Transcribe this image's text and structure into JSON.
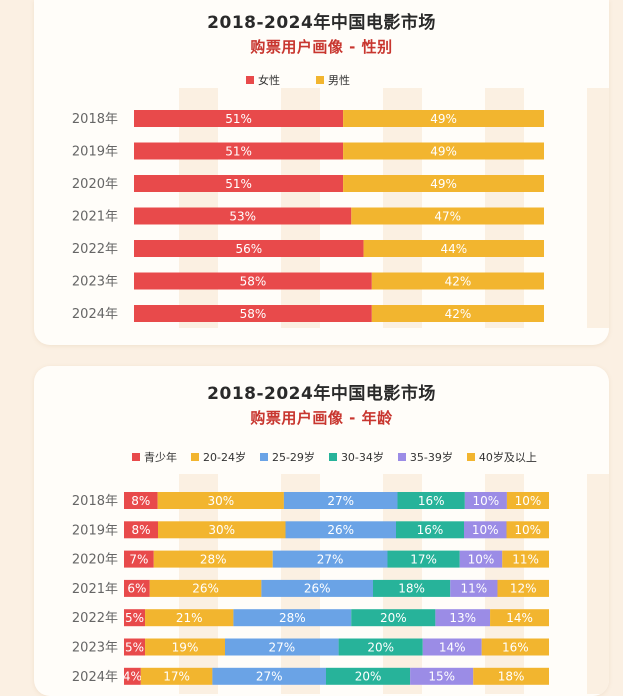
{
  "colors": {
    "female": "#e84a4b",
    "male": "#f2b52f",
    "age_teen": "#e84a4b",
    "age_20_24": "#f2b52f",
    "age_25_29": "#6aa3e6",
    "age_30_34": "#27b39a",
    "age_35_39": "#9b8ce6",
    "age_40_plus": "#f2b52f"
  },
  "chart_data": [
    {
      "type": "bar",
      "orientation": "horizontal",
      "stacked": true,
      "title": "2018-2024年中国电影市场",
      "subtitle": "购票用户画像 - 性别",
      "categories": [
        "2018年",
        "2019年",
        "2020年",
        "2021年",
        "2022年",
        "2023年",
        "2024年"
      ],
      "series": [
        {
          "name": "女性",
          "values": [
            51,
            51,
            51,
            53,
            56,
            58,
            58
          ]
        },
        {
          "name": "男性",
          "values": [
            49,
            49,
            49,
            47,
            44,
            42,
            42
          ]
        }
      ],
      "value_suffix": "%",
      "legend_position": "top"
    },
    {
      "type": "bar",
      "orientation": "horizontal",
      "stacked": true,
      "title": "2018-2024年中国电影市场",
      "subtitle": "购票用户画像 - 年龄",
      "categories": [
        "2018年",
        "2019年",
        "2020年",
        "2021年",
        "2022年",
        "2023年",
        "2024年"
      ],
      "series": [
        {
          "name": "青少年",
          "values": [
            8,
            8,
            7,
            6,
            5,
            5,
            4
          ],
          "labels": [
            "8%",
            "8%",
            "7%",
            "6%",
            "5%",
            "5%",
            "4%"
          ]
        },
        {
          "name": "20-24岁",
          "values": [
            30,
            30,
            28,
            26,
            21,
            19,
            17
          ]
        },
        {
          "name": "25-29岁",
          "values": [
            27,
            26,
            27,
            26,
            28,
            27,
            27
          ]
        },
        {
          "name": "30-34岁",
          "values": [
            16,
            16,
            17,
            18,
            20,
            20,
            20
          ]
        },
        {
          "name": "35-39岁",
          "values": [
            10,
            10,
            10,
            11,
            13,
            14,
            15
          ]
        },
        {
          "name": "40岁及以上",
          "values": [
            10,
            10,
            11,
            12,
            14,
            16,
            18
          ]
        }
      ],
      "value_suffix": "%",
      "legend_position": "top"
    }
  ]
}
